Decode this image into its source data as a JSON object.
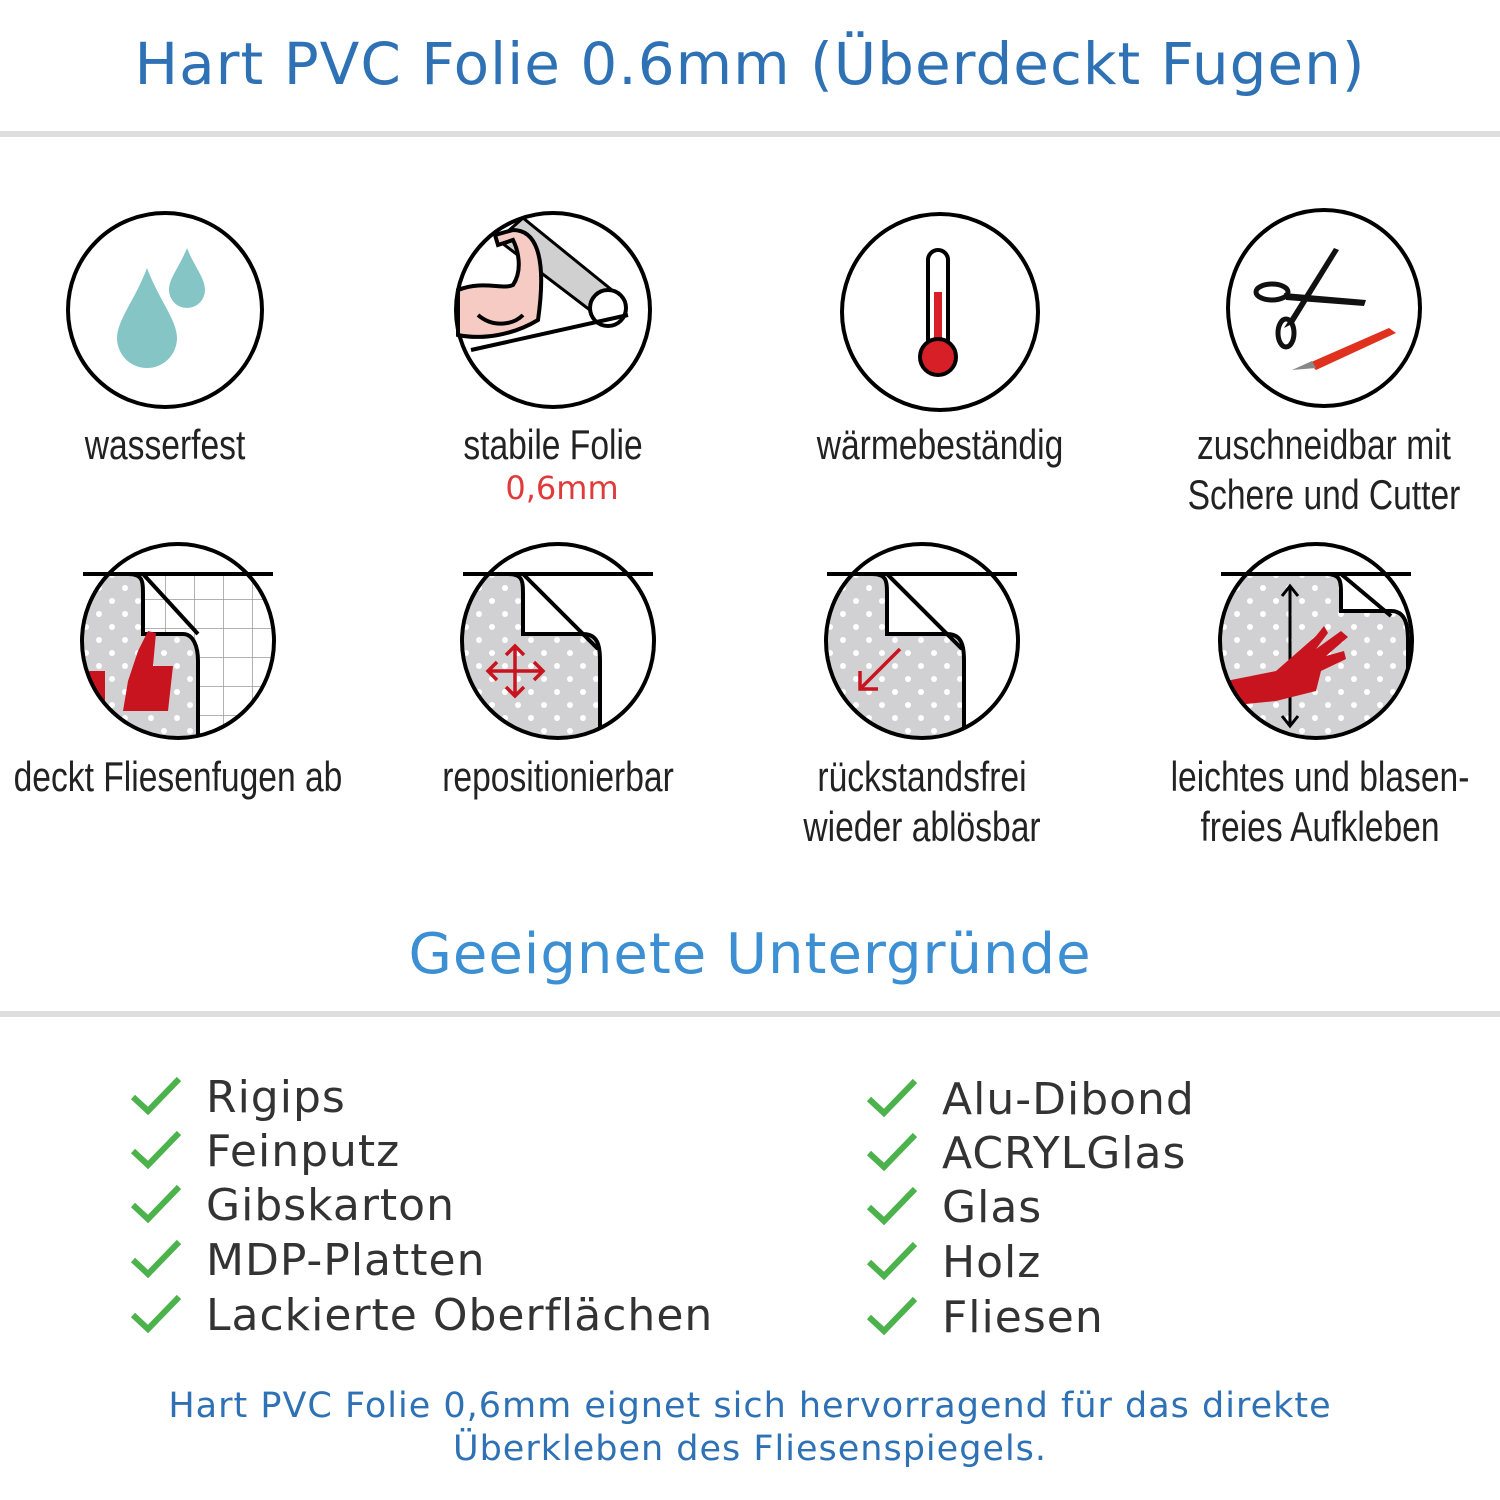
{
  "header": {
    "title": "Hart PVC Folie 0.6mm (Überdeckt Fugen)"
  },
  "features": [
    {
      "icon": "water-drops-icon",
      "label": "wasserfest"
    },
    {
      "icon": "strong-arm-icon",
      "label": "stabile Folie",
      "sublabel": "0,6mm"
    },
    {
      "icon": "thermometer-icon",
      "label": "wärmebeständig"
    },
    {
      "icon": "scissors-cutter-icon",
      "label_lines": [
        "zuschneidbar mit",
        "Schere und Cutter"
      ]
    },
    {
      "icon": "thumbs-up-tiles-icon",
      "label": "deckt Fliesenfugen ab"
    },
    {
      "icon": "move-arrows-icon",
      "label": "repositionierbar"
    },
    {
      "icon": "peel-arrow-icon",
      "label_lines": [
        "rückstandsfrei",
        "wieder ablösbar"
      ]
    },
    {
      "icon": "hand-smooth-icon",
      "label_lines": [
        "leichtes und blasen-",
        "freies Aufkleben"
      ]
    }
  ],
  "surfaces": {
    "title": "Geeignete Untergründe",
    "left": [
      "Rigips",
      "Feinputz",
      "Gibskarton",
      "MDP-Platten",
      "Lackierte Oberflächen"
    ],
    "right": [
      "Alu-Dibond",
      "ACRYLGlas",
      "Glas",
      "Holz",
      "Fliesen"
    ]
  },
  "footer": {
    "lines": [
      "Hart PVC Folie 0,6mm eignet sich hervorragend für das direkte",
      "Überkleben des Fliesenspiegels."
    ]
  },
  "colors": {
    "title": "#2e72b5",
    "subtitle": "#3b8fd2",
    "check": "#4cb24c",
    "accent_red": "#c8141e",
    "drop": "#86c5c5"
  }
}
